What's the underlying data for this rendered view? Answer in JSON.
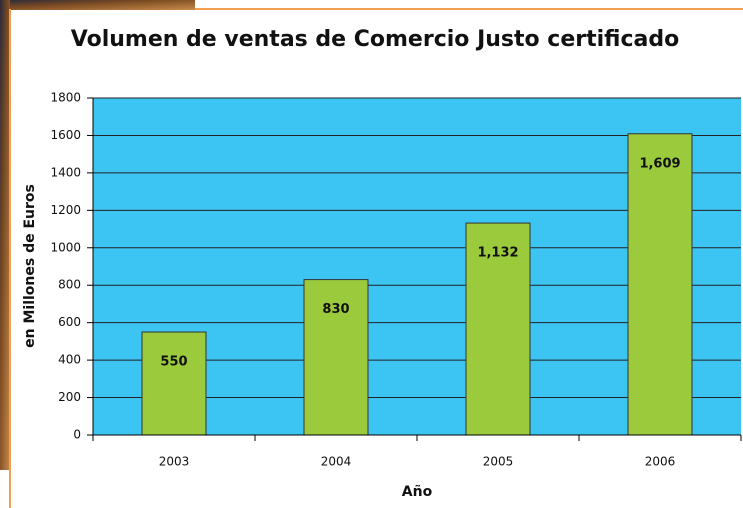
{
  "chart_data": {
    "type": "bar",
    "title": "Volumen de ventas de Comercio Justo certificado",
    "x_label": "Año",
    "y_label": "en Millones de Euros",
    "categories": [
      "2003",
      "2004",
      "2005",
      "2006"
    ],
    "values": [
      550,
      830,
      1132,
      1609
    ],
    "value_labels": [
      "550",
      "830",
      "1,132",
      "1,609"
    ],
    "color": "#9bca3c",
    "background": "#3cc5f2",
    "ylim": [
      0,
      1800
    ],
    "yticks": [
      0,
      200,
      400,
      600,
      800,
      1000,
      1200,
      1400,
      1600,
      1800
    ],
    "grid": true
  }
}
